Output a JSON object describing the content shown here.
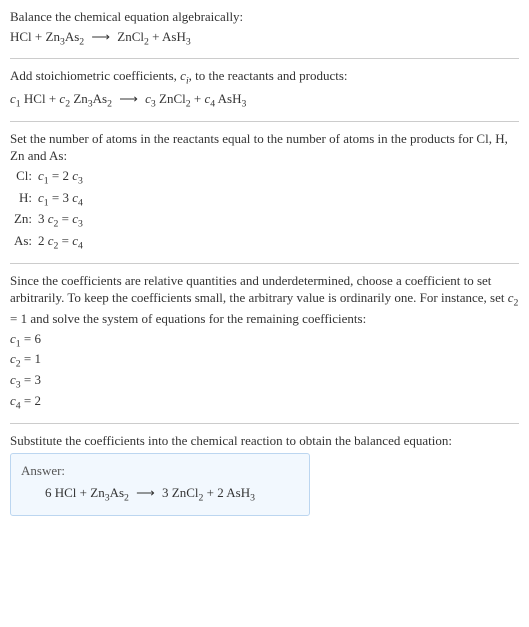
{
  "colors": {
    "text": "#333333",
    "divider": "#cccccc",
    "answer_border": "#bcd6f0",
    "answer_bg": "#f2f8fe",
    "answer_label": "#555555",
    "background": "#ffffff"
  },
  "fonts": {
    "body_family": "Georgia, 'Times New Roman', serif",
    "body_size_pt": 10
  },
  "intro": {
    "line1": "Balance the chemical equation algebraically:",
    "reaction": {
      "lhs": [
        {
          "text": "HCl"
        },
        {
          "text": "Zn",
          "sub_after": "3",
          "tail": "As",
          "tail_sub": "2"
        }
      ],
      "arrow": "⟶",
      "rhs": [
        {
          "text": "ZnCl",
          "sub_after": "2"
        },
        {
          "text": "AsH",
          "sub_after": "3"
        }
      ]
    }
  },
  "step_coeffs": {
    "text": "Add stoichiometric coefficients, cᵢ, to the reactants and products:",
    "reaction": {
      "terms": [
        {
          "coef": "c",
          "coef_sub": "1",
          "species": "HCl"
        },
        {
          "coef": "c",
          "coef_sub": "2",
          "species": "Zn₃As₂"
        }
      ],
      "arrow": "⟶",
      "terms_rhs": [
        {
          "coef": "c",
          "coef_sub": "3",
          "species": "ZnCl₂"
        },
        {
          "coef": "c",
          "coef_sub": "4",
          "species": "AsH₃"
        }
      ]
    }
  },
  "atoms_intro": "Set the number of atoms in the reactants equal to the number of atoms in the products for Cl, H, Zn and As:",
  "atom_eqs": [
    {
      "element": "Cl:",
      "eq": "c₁ = 2 c₃"
    },
    {
      "element": "H:",
      "eq": "c₁ = 3 c₄"
    },
    {
      "element": "Zn:",
      "eq": "3 c₂ = c₃"
    },
    {
      "element": "As:",
      "eq": "2 c₂ = c₄"
    }
  ],
  "solve_text": "Since the coefficients are relative quantities and underdetermined, choose a coefficient to set arbitrarily. To keep the coefficients small, the arbitrary value is ordinarily one. For instance, set c₂ = 1 and solve the system of equations for the remaining coefficients:",
  "solved_coeffs": [
    "c₁ = 6",
    "c₂ = 1",
    "c₃ = 3",
    "c₄ = 2"
  ],
  "substitute_text": "Substitute the coefficients into the chemical reaction to obtain the balanced equation:",
  "answer": {
    "label": "Answer:",
    "equation": "6 HCl + Zn₃As₂  ⟶  3 ZnCl₂ + 2 AsH₃"
  }
}
